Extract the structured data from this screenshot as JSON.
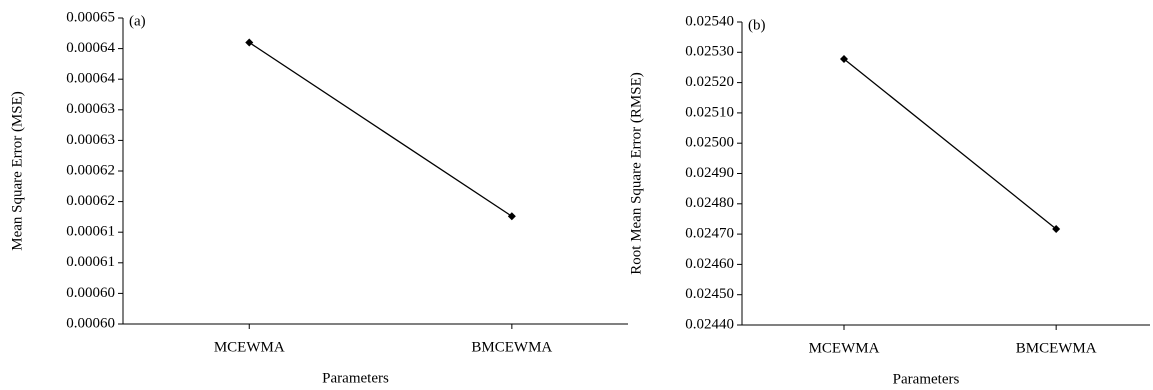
{
  "chart_data": [
    {
      "type": "line",
      "label": "(a)",
      "x_label": "Parameters",
      "y_label": "Mean Square Error (MSE)",
      "categories": [
        "MCEWMA",
        "BMCEWMA"
      ],
      "series": [
        {
          "color": "#000000",
          "values": [
            0.000646,
            0.0006176
          ]
        }
      ],
      "ylim": [
        0.0006,
        0.00065
      ],
      "yticks": [
        {
          "value": 0.0006,
          "label": "0.00060"
        },
        {
          "value": 0.000605,
          "label": "0.00060"
        },
        {
          "value": 0.00061,
          "label": "0.00061"
        },
        {
          "value": 0.000615,
          "label": "0.00061"
        },
        {
          "value": 0.00062,
          "label": "0.00062"
        },
        {
          "value": 0.000625,
          "label": "0.00062"
        },
        {
          "value": 0.00063,
          "label": "0.00063"
        },
        {
          "value": 0.000635,
          "label": "0.00063"
        },
        {
          "value": 0.00064,
          "label": "0.00064"
        },
        {
          "value": 0.000645,
          "label": "0.00064"
        },
        {
          "value": 0.00065,
          "label": "0.00065"
        }
      ]
    },
    {
      "type": "line",
      "label": "(b)",
      "x_label": "Parameters",
      "y_label": "Root Mean Square Error (RMSE)",
      "categories": [
        "MCEWMA",
        "BMCEWMA"
      ],
      "series": [
        {
          "color": "#000000",
          "values": [
            0.025278,
            0.024717
          ]
        }
      ],
      "ylim": [
        0.0244,
        0.0254
      ],
      "yticks": [
        {
          "value": 0.0244,
          "label": "0.02440"
        },
        {
          "value": 0.0245,
          "label": "0.02450"
        },
        {
          "value": 0.0246,
          "label": "0.02460"
        },
        {
          "value": 0.0247,
          "label": "0.02470"
        },
        {
          "value": 0.0248,
          "label": "0.02480"
        },
        {
          "value": 0.0249,
          "label": "0.02490"
        },
        {
          "value": 0.025,
          "label": "0.02500"
        },
        {
          "value": 0.0251,
          "label": "0.02510"
        },
        {
          "value": 0.0252,
          "label": "0.02520"
        },
        {
          "value": 0.0253,
          "label": "0.02530"
        },
        {
          "value": 0.0254,
          "label": "0.02540"
        }
      ]
    }
  ]
}
